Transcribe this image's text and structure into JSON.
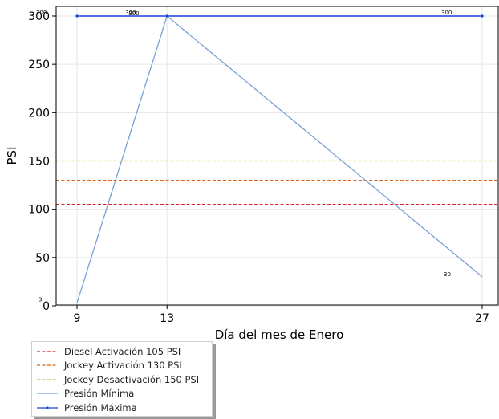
{
  "chart_data": {
    "type": "line",
    "xlabel": "Día del mes de  Enero",
    "ylabel": "PSI",
    "x": [
      9,
      13,
      27
    ],
    "xticks": [
      9,
      13,
      27
    ],
    "yticks": [
      0,
      50,
      100,
      150,
      200,
      250,
      300
    ],
    "ylim": [
      0,
      310
    ],
    "grid": true,
    "legend_position": "below-left",
    "series": [
      {
        "name": "Diesel Activación 105 PSI",
        "style": "dashed",
        "color": "#d62728",
        "values": [
          105,
          105,
          105
        ]
      },
      {
        "name": "Jockey Activación 130 PSI",
        "style": "dashed",
        "color": "#d2691e",
        "values": [
          130,
          130,
          130
        ]
      },
      {
        "name": "Jockey Desactivación 150 PSI",
        "style": "dashed",
        "color": "#d4b21a",
        "values": [
          150,
          150,
          150
        ]
      },
      {
        "name": "Presión Mínima",
        "style": "solid",
        "color": "#7b9fd6",
        "values": [
          3,
          300,
          30
        ]
      },
      {
        "name": "Presión Máxima",
        "style": "solid-marker",
        "color": "#1f3fdc",
        "values": [
          300,
          300,
          300
        ]
      }
    ],
    "annotations": [
      {
        "x": 9,
        "y": 3,
        "text": "3",
        "series": "Presión Mínima"
      },
      {
        "x": 13,
        "y": 300,
        "text": "300",
        "series": "Presión Mínima"
      },
      {
        "x": 27,
        "y": 30,
        "text": "30",
        "series": "Presión Mínima"
      },
      {
        "x": 9,
        "y": 300,
        "text": "300",
        "series": "Presión Máxima"
      },
      {
        "x": 13,
        "y": 300,
        "text": "300",
        "series": "Presión Máxima"
      },
      {
        "x": 27,
        "y": 300,
        "text": "300",
        "series": "Presión Máxima"
      }
    ]
  }
}
